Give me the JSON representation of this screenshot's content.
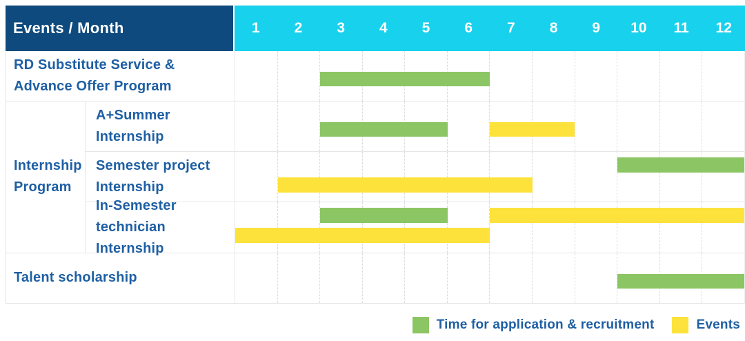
{
  "header": {
    "label": "Events / Month",
    "months": [
      "1",
      "2",
      "3",
      "4",
      "5",
      "6",
      "7",
      "8",
      "9",
      "10",
      "11",
      "12"
    ]
  },
  "colors": {
    "green": "#8CC563",
    "yellow": "#FDE23C",
    "navy": "#0F4A7E",
    "cyan": "#18D1EC",
    "label_blue": "#1E5FA4"
  },
  "group_cell": {
    "label": "Internship Program",
    "lines": [
      "Internship",
      "Program"
    ]
  },
  "legend": {
    "items": [
      {
        "color": "green",
        "label": "Time for application & recruitment"
      },
      {
        "color": "yellow",
        "label": "Events"
      }
    ]
  },
  "chart_data": {
    "type": "gantt",
    "title": "Events / Month",
    "x_unit": "month",
    "x_range": [
      1,
      12
    ],
    "x_ticks": [
      1,
      2,
      3,
      4,
      5,
      6,
      7,
      8,
      9,
      10,
      11,
      12
    ],
    "series": [
      {
        "name": "Time for application & recruitment",
        "color": "green"
      },
      {
        "name": "Events",
        "color": "yellow"
      }
    ],
    "rows": [
      {
        "label": "RD Substitute Service & Advance Offer Program",
        "label_lines": [
          "RD Substitute Service &",
          "Advance Offer Program"
        ],
        "group": null,
        "lanes": [
          [
            {
              "series": "Time for application & recruitment",
              "color": "green",
              "start": 3,
              "end": 6
            }
          ]
        ]
      },
      {
        "label": "A+Summer Internship",
        "label_lines": [
          "A+Summer",
          "Internship"
        ],
        "group": "Internship Program",
        "lanes": [
          [
            {
              "series": "Time for application & recruitment",
              "color": "green",
              "start": 3,
              "end": 5
            },
            {
              "series": "Events",
              "color": "yellow",
              "start": 7,
              "end": 8
            }
          ]
        ]
      },
      {
        "label": "Semester project Internship",
        "label_lines": [
          "Semester project",
          "Internship"
        ],
        "group": "Internship Program",
        "lanes": [
          [
            {
              "series": "Time for application & recruitment",
              "color": "green",
              "start": 10,
              "end": 12
            }
          ],
          [
            {
              "series": "Events",
              "color": "yellow",
              "start": 2,
              "end": 7
            }
          ]
        ]
      },
      {
        "label": "In-Semester technician Internship",
        "label_lines": [
          "In-Semester",
          "technician Internship"
        ],
        "group": "Internship Program",
        "lanes": [
          [
            {
              "series": "Time for application & recruitment",
              "color": "green",
              "start": 3,
              "end": 5
            },
            {
              "series": "Events",
              "color": "yellow",
              "start": 7,
              "end": 12
            }
          ],
          [
            {
              "series": "Events",
              "color": "yellow",
              "start": 1,
              "end": 6
            }
          ]
        ]
      },
      {
        "label": "Talent scholarship",
        "label_lines": [
          "Talent scholarship"
        ],
        "group": null,
        "lanes": [
          [
            {
              "series": "Time for application & recruitment",
              "color": "green",
              "start": 10,
              "end": 12
            }
          ]
        ]
      }
    ]
  }
}
